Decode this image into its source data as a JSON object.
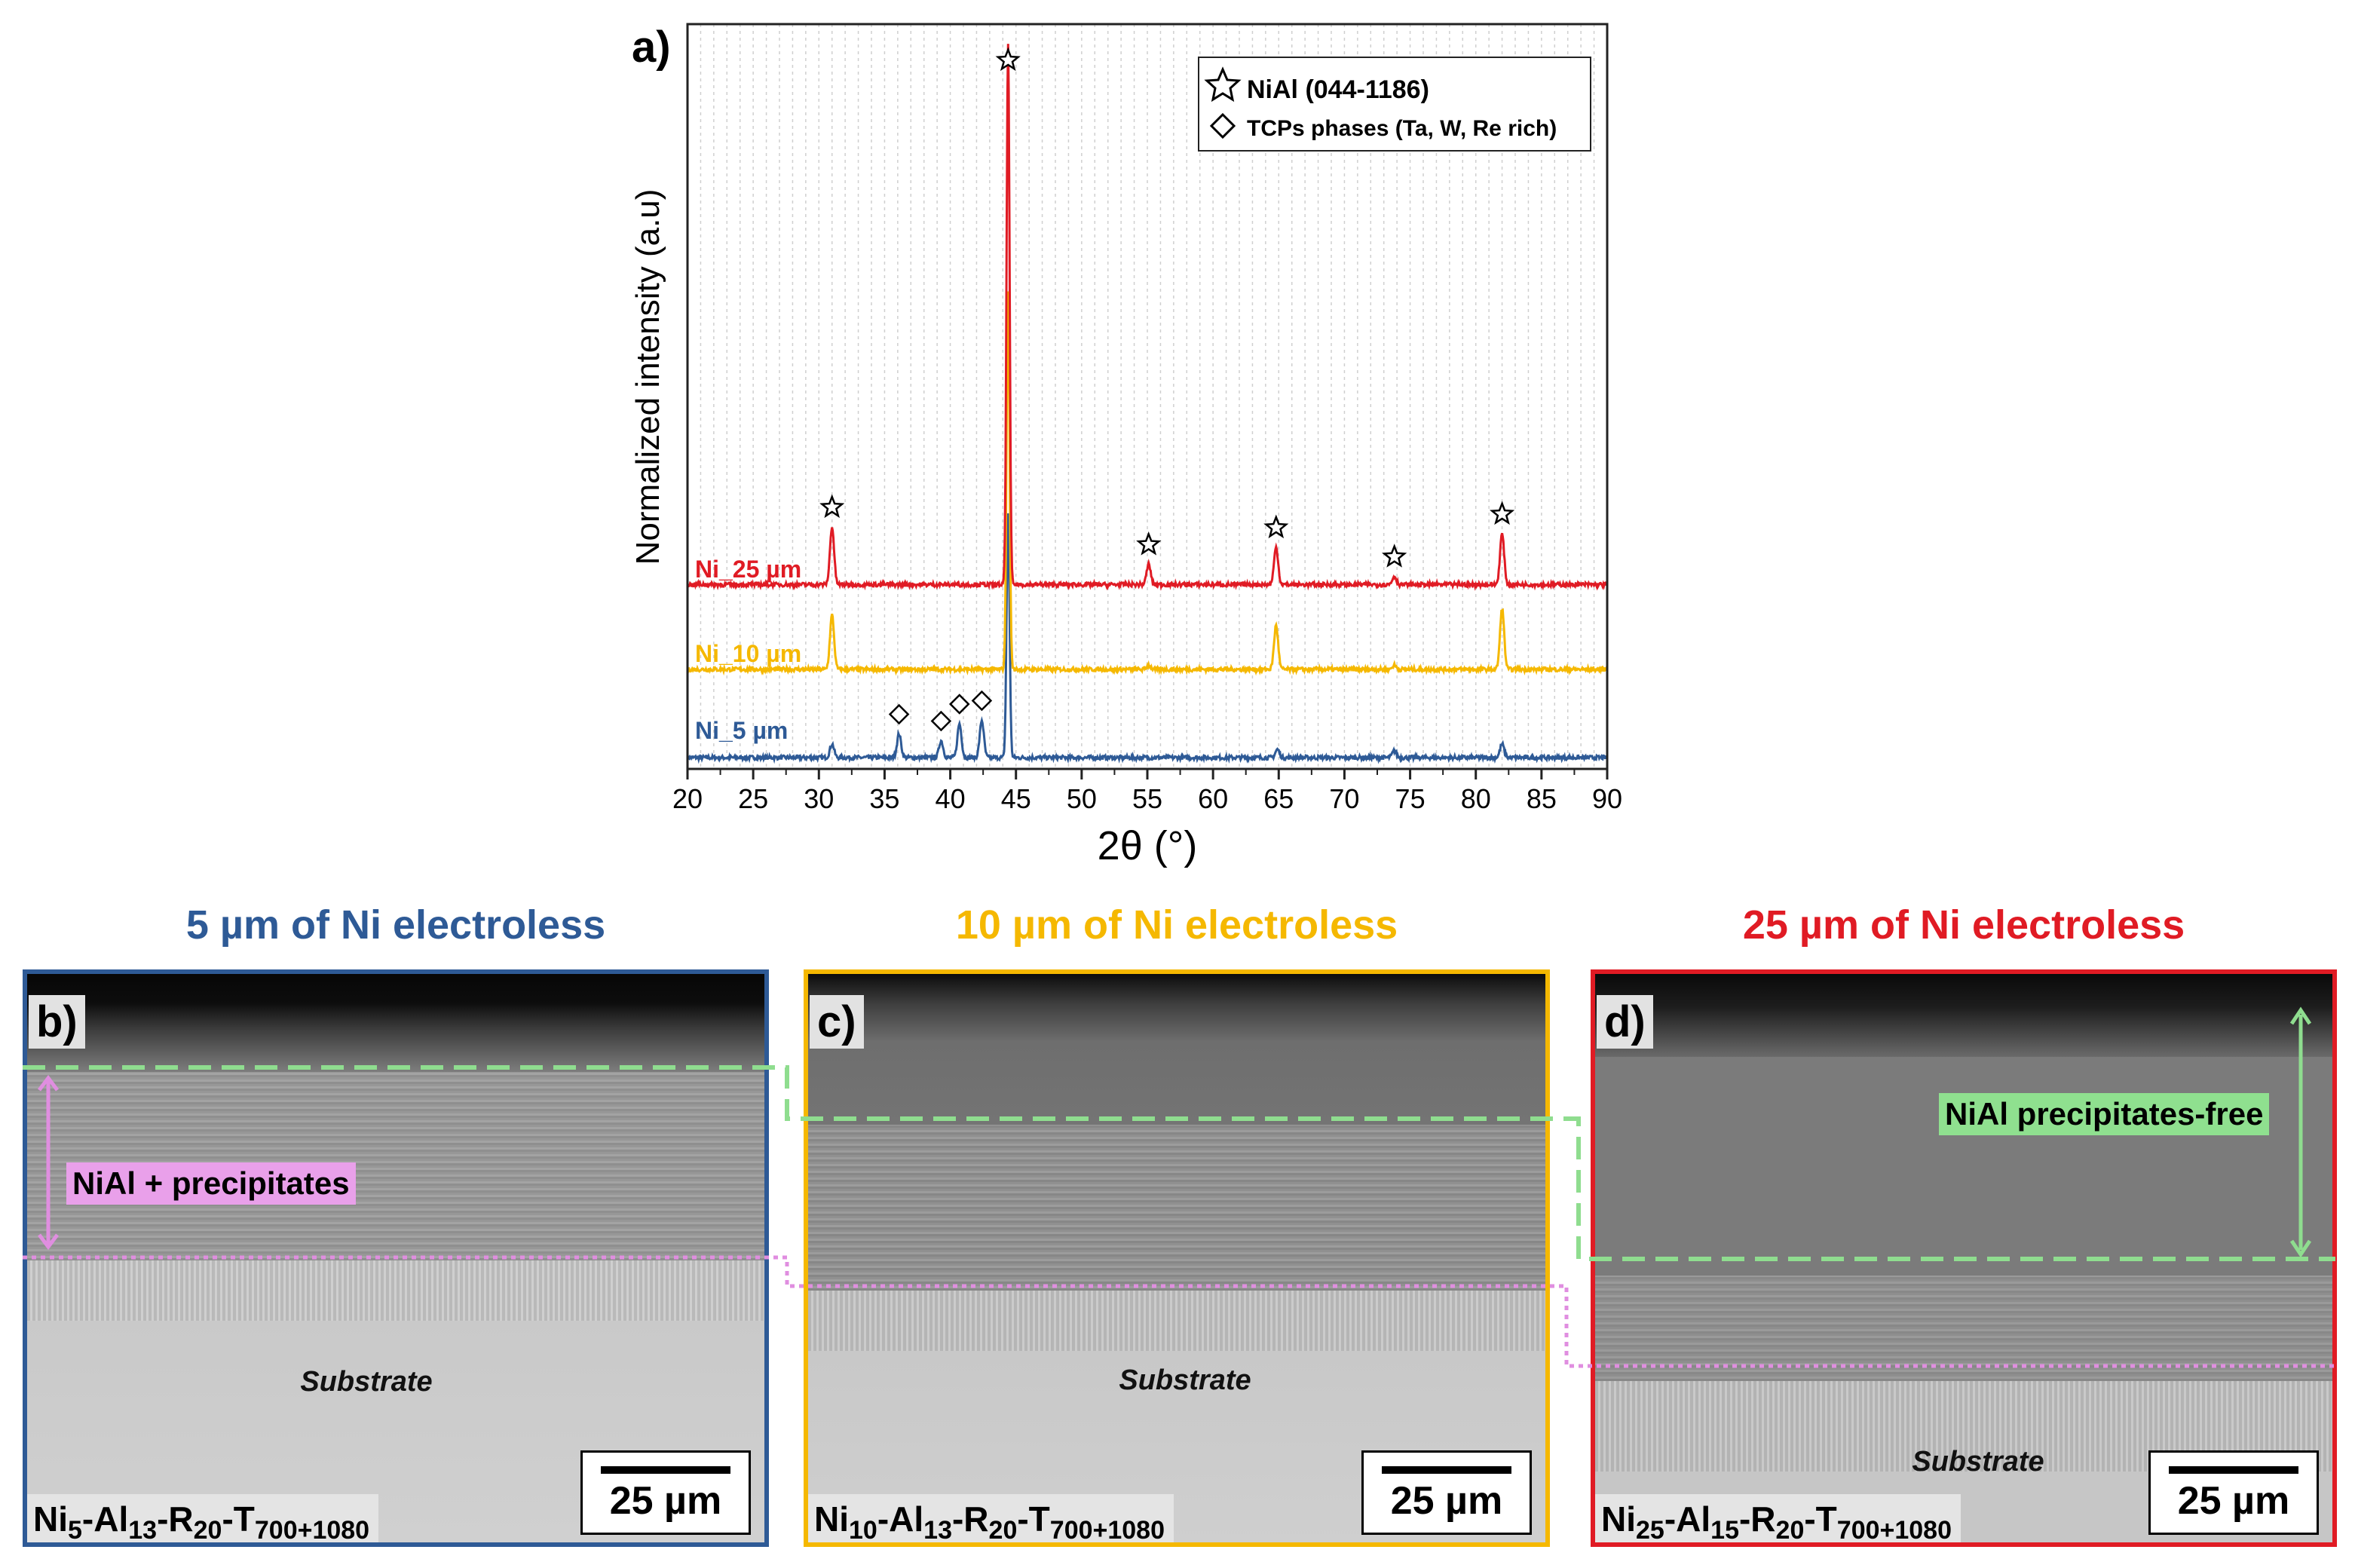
{
  "chart_data": {
    "type": "line",
    "panel_label": "a)",
    "xlabel": "2θ (°)",
    "ylabel": "Normalized intensity (a.u)",
    "xlim": [
      20,
      90
    ],
    "x_ticks": [
      20,
      25,
      30,
      35,
      40,
      45,
      50,
      55,
      60,
      65,
      70,
      75,
      80,
      85,
      90
    ],
    "grid": "vertical",
    "legend_position": "top-right",
    "legend": [
      {
        "symbol": "star",
        "label": "NiAl (044-1186)"
      },
      {
        "symbol": "diamond",
        "label": "TCPs phases (Ta, W, Re rich)"
      }
    ],
    "series": [
      {
        "name": "Ni_5 µm",
        "color": "#2e5a96",
        "offset": 0.0,
        "peaks": [
          [
            31.0,
            0.02
          ],
          [
            36.1,
            0.035
          ],
          [
            39.3,
            0.025
          ],
          [
            40.7,
            0.05
          ],
          [
            42.4,
            0.055
          ],
          [
            44.4,
            0.36
          ],
          [
            64.9,
            0.012
          ],
          [
            73.8,
            0.01
          ],
          [
            82.0,
            0.02
          ]
        ]
      },
      {
        "name": "Ni_10 µm",
        "color": "#f5b800",
        "offset": 0.13,
        "peaks": [
          [
            31.0,
            0.08
          ],
          [
            44.4,
            0.56
          ],
          [
            55.1,
            0.006
          ],
          [
            64.8,
            0.065
          ],
          [
            73.8,
            0.006
          ],
          [
            82.0,
            0.09
          ]
        ]
      },
      {
        "name": "Ni_25 µm",
        "color": "#e01b24",
        "offset": 0.255,
        "peaks": [
          [
            31.0,
            0.085
          ],
          [
            44.4,
            0.8
          ],
          [
            55.1,
            0.03
          ],
          [
            64.8,
            0.055
          ],
          [
            73.8,
            0.012
          ],
          [
            82.0,
            0.075
          ]
        ]
      }
    ],
    "star_markers_x": [
      31.0,
      44.4,
      55.1,
      64.8,
      73.8,
      82.0
    ],
    "diamond_markers_x": [
      36.1,
      39.3,
      40.7,
      42.4
    ]
  },
  "panels": [
    {
      "letter": "b)",
      "title": "5 µm of Ni electroless",
      "color": "#2e5a96",
      "substrate_label": "Substrate",
      "scale_text": "25 µm",
      "annotation": "NiAl + precipitates",
      "sample_label": {
        "main": "Ni",
        "s1": "5",
        "p2": "-Al",
        "s2": "13",
        "p3": "-R",
        "s3": "20",
        "p4": "-T",
        "s4": "700+1080"
      }
    },
    {
      "letter": "c)",
      "title": "10 µm of Ni electroless",
      "color": "#f5b800",
      "substrate_label": "Substrate",
      "scale_text": "25 µm",
      "sample_label": {
        "main": "Ni",
        "s1": "10",
        "p2": "-Al",
        "s2": "13",
        "p3": "-R",
        "s3": "20",
        "p4": "-T",
        "s4": "700+1080"
      }
    },
    {
      "letter": "d)",
      "title": "25 µm of Ni electroless",
      "color": "#e01b24",
      "substrate_label": "Substrate",
      "scale_text": "25 µm",
      "annotation": "NiAl precipitates-free",
      "sample_label": {
        "main": "Ni",
        "s1": "25",
        "p2": "-Al",
        "s2": "15",
        "p3": "-R",
        "s3": "20",
        "p4": "-T",
        "s4": "700+1080"
      }
    }
  ],
  "colors": {
    "green_dashed": "#8fdd8f",
    "pink_dotted": "#e08ee0",
    "annotation_pink": "#e9a0ea",
    "annotation_green": "#8fe08f"
  }
}
